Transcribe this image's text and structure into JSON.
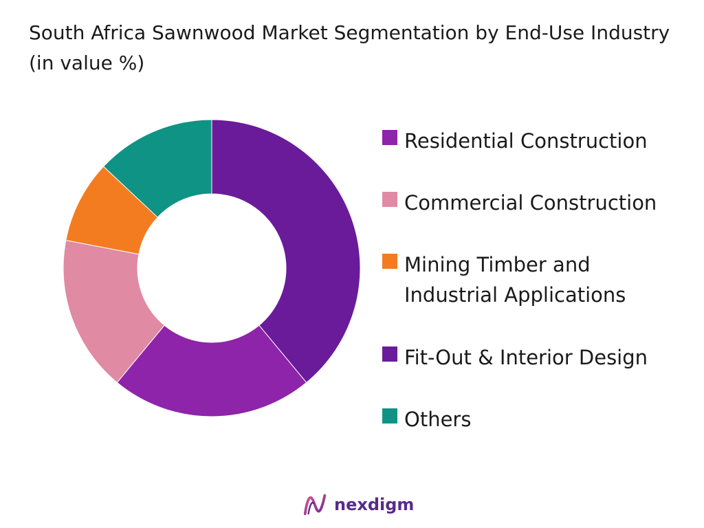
{
  "chart_data": {
    "type": "pie",
    "title": "South Africa Sawnwood Market Segmentation by End-Use Industry (in value %)",
    "categories": [
      "Residential Construction",
      "Commercial Construction",
      "Mining Timber and\nIndustrial Applications",
      "Fit-Out & Interior Design",
      "Others"
    ],
    "values": [
      22,
      17,
      9,
      39,
      13
    ],
    "colors": [
      "#8e24aa",
      "#e08aa3",
      "#f37c21",
      "#6a1b9a",
      "#0f9384"
    ],
    "slice_order": [
      3,
      0,
      1,
      2,
      4
    ],
    "legend_position": "right"
  },
  "brand": {
    "name": "nexdigm",
    "logo_icon": "nexdigm-logo-icon"
  }
}
